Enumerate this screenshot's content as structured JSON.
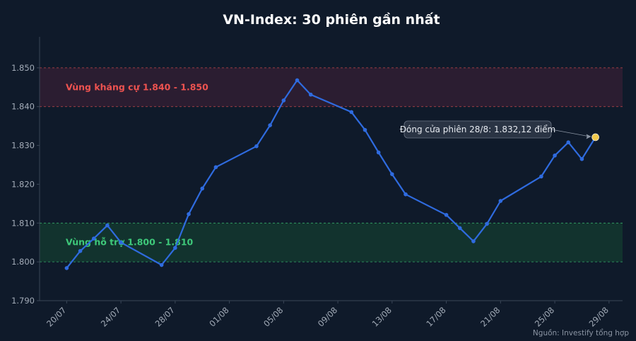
{
  "chart_data": {
    "type": "line",
    "title": "VN-Index: 30 phiên gần nhất",
    "xlabel": "",
    "ylabel": "",
    "ylim": [
      1790,
      1858
    ],
    "yticks": [
      1790,
      1800,
      1810,
      1820,
      1830,
      1840,
      1850
    ],
    "ytick_labels": [
      "1.790",
      "1.800",
      "1.810",
      "1.820",
      "1.830",
      "1.840",
      "1.850"
    ],
    "xlim": [
      "2025-07-18",
      "2025-08-30"
    ],
    "xticks": [
      "2025-07-20",
      "2025-07-24",
      "2025-07-28",
      "2025-08-01",
      "2025-08-05",
      "2025-08-09",
      "2025-08-13",
      "2025-08-17",
      "2025-08-21",
      "2025-08-25",
      "2025-08-29"
    ],
    "xtick_labels": [
      "20/07",
      "24/07",
      "28/07",
      "01/08",
      "05/08",
      "09/08",
      "13/08",
      "17/08",
      "21/08",
      "25/08",
      "29/08"
    ],
    "grid": false,
    "x": [
      "2025-07-20",
      "2025-07-21",
      "2025-07-22",
      "2025-07-23",
      "2025-07-24",
      "2025-07-27",
      "2025-07-28",
      "2025-07-29",
      "2025-07-30",
      "2025-07-31",
      "2025-08-03",
      "2025-08-04",
      "2025-08-05",
      "2025-08-06",
      "2025-08-07",
      "2025-08-10",
      "2025-08-11",
      "2025-08-12",
      "2025-08-13",
      "2025-08-14",
      "2025-08-17",
      "2025-08-18",
      "2025-08-19",
      "2025-08-20",
      "2025-08-21",
      "2025-08-24",
      "2025-08-25",
      "2025-08-26",
      "2025-08-27",
      "2025-08-28"
    ],
    "series": [
      {
        "values": [
          1798.4,
          1802.8,
          1806.0,
          1809.4,
          1805.0,
          1799.2,
          1803.6,
          1812.3,
          1818.9,
          1824.4,
          1829.8,
          1835.2,
          1841.6,
          1846.8,
          1843.1,
          1838.6,
          1834.0,
          1828.2,
          1822.6,
          1817.4,
          1812.1,
          1808.7,
          1805.3,
          1809.8,
          1815.7,
          1822.0,
          1827.4,
          1830.8,
          1826.5,
          1832.12
        ],
        "color": "#2f6bdf"
      }
    ],
    "bands": [
      {
        "label": "Vùng kháng cự 1.840 - 1.850",
        "from": 1840,
        "to": 1850,
        "color": "#ef5350",
        "fill": "#2b1d31"
      },
      {
        "label": "Vùng hỗ trợ 1.800 - 1.810",
        "from": 1800,
        "to": 1810,
        "color": "#3ec97a",
        "fill": "#12332e"
      }
    ],
    "annotation": {
      "text": "Đóng cửa phiên 28/8: 1.832,12 điểm",
      "x": "2025-08-28",
      "y": 1832.12,
      "marker_color": "#f2c94c"
    },
    "source": "Nguồn: Investify tổng hợp"
  },
  "colors": {
    "background": "#0f1a2a",
    "axis": "#3a4657",
    "tick_text": "#a3acb8"
  }
}
